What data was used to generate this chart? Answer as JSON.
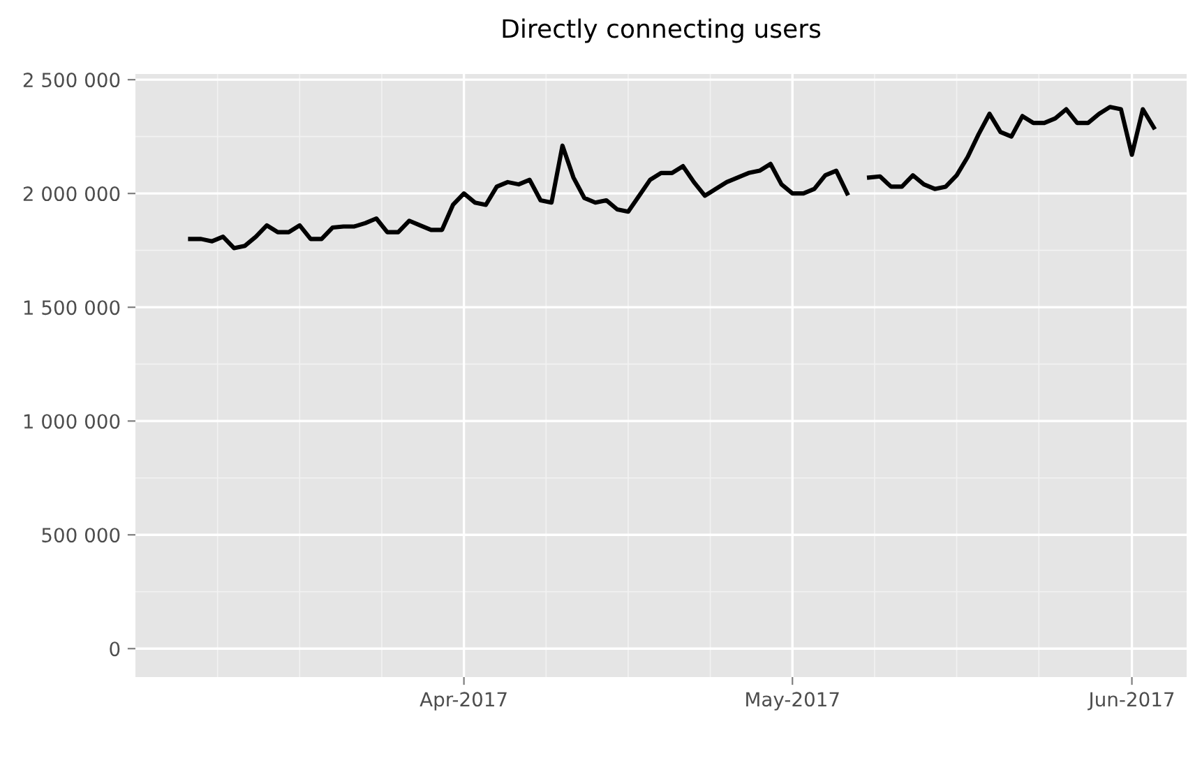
{
  "chart_data": {
    "type": "line",
    "title": "Directly connecting users",
    "x": [
      "2017-03-07",
      "2017-03-08",
      "2017-03-09",
      "2017-03-10",
      "2017-03-11",
      "2017-03-12",
      "2017-03-13",
      "2017-03-14",
      "2017-03-15",
      "2017-03-16",
      "2017-03-17",
      "2017-03-18",
      "2017-03-19",
      "2017-03-20",
      "2017-03-21",
      "2017-03-22",
      "2017-03-23",
      "2017-03-24",
      "2017-03-25",
      "2017-03-26",
      "2017-03-27",
      "2017-03-28",
      "2017-03-29",
      "2017-03-30",
      "2017-03-31",
      "2017-04-01",
      "2017-04-02",
      "2017-04-03",
      "2017-04-04",
      "2017-04-05",
      "2017-04-06",
      "2017-04-07",
      "2017-04-08",
      "2017-04-09",
      "2017-04-10",
      "2017-04-11",
      "2017-04-12",
      "2017-04-13",
      "2017-04-14",
      "2017-04-15",
      "2017-04-16",
      "2017-04-17",
      "2017-04-18",
      "2017-04-19",
      "2017-04-20",
      "2017-04-21",
      "2017-04-22",
      "2017-04-23",
      "2017-04-24",
      "2017-04-25",
      "2017-04-26",
      "2017-04-27",
      "2017-04-28",
      "2017-04-29",
      "2017-04-30",
      "2017-05-01",
      "2017-05-02",
      "2017-05-03",
      "2017-05-04",
      "2017-05-05",
      "2017-05-06",
      "2017-05-07",
      "2017-05-08",
      "2017-05-09",
      "2017-05-10",
      "2017-05-11",
      "2017-05-12",
      "2017-05-13",
      "2017-05-14",
      "2017-05-15",
      "2017-05-16",
      "2017-05-17",
      "2017-05-18",
      "2017-05-19",
      "2017-05-20",
      "2017-05-21",
      "2017-05-22",
      "2017-05-23",
      "2017-05-24",
      "2017-05-25",
      "2017-05-26",
      "2017-05-27",
      "2017-05-28",
      "2017-05-29",
      "2017-05-30",
      "2017-05-31",
      "2017-06-01",
      "2017-06-02",
      "2017-06-03"
    ],
    "series": [
      {
        "color": "#000000",
        "values": [
          1800000,
          1800000,
          1790000,
          1810000,
          1760000,
          1770000,
          1810000,
          1860000,
          1830000,
          1830000,
          1860000,
          1800000,
          1800000,
          1850000,
          1855000,
          1855000,
          1870000,
          1890000,
          1830000,
          1830000,
          1880000,
          1860000,
          1840000,
          1840000,
          1950000,
          2000000,
          1960000,
          1950000,
          2030000,
          2050000,
          2040000,
          2060000,
          1970000,
          1960000,
          2210000,
          2070000,
          1980000,
          1960000,
          1970000,
          1930000,
          1920000,
          1990000,
          2060000,
          2090000,
          2090000,
          2120000,
          2050000,
          1990000,
          2020000,
          2050000,
          2070000,
          2090000,
          2100000,
          2130000,
          2040000,
          2000000,
          2000000,
          2020000,
          2080000,
          2100000,
          2000000,
          null,
          2070000,
          2075000,
          2030000,
          2030000,
          2080000,
          2040000,
          2020000,
          2030000,
          2080000,
          2160000,
          2260000,
          2350000,
          2270000,
          2250000,
          2340000,
          2310000,
          2310000,
          2330000,
          2370000,
          2310000,
          2310000,
          2350000,
          2380000,
          2370000,
          2170000,
          2370000,
          2290000
        ]
      }
    ],
    "xlim": [
      "2017-03-02",
      "2017-06-06"
    ],
    "xticks": [
      {
        "value": "2017-04-01",
        "label": "Apr-2017"
      },
      {
        "value": "2017-05-01",
        "label": "May-2017"
      },
      {
        "value": "2017-06-01",
        "label": "Jun-2017"
      }
    ],
    "ylim": [
      -125000,
      2525000
    ],
    "yticks": [
      {
        "value": 0,
        "label": "0"
      },
      {
        "value": 500000,
        "label": "500 000"
      },
      {
        "value": 1000000,
        "label": "1 000 000"
      },
      {
        "value": 1500000,
        "label": "1 500 000"
      },
      {
        "value": 2000000,
        "label": "2 000 000"
      },
      {
        "value": 2500000,
        "label": "2 500 000"
      }
    ],
    "grid": true,
    "marker": "none",
    "line_style": "solid"
  }
}
